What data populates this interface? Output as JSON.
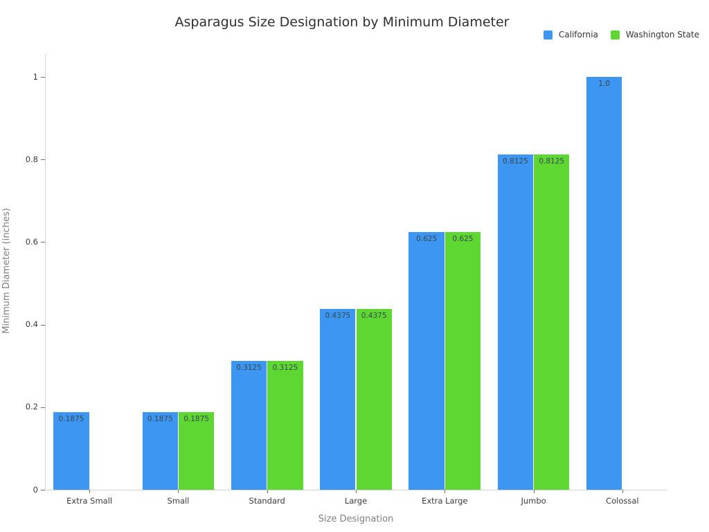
{
  "chart_data": {
    "type": "bar",
    "title": "Asparagus Size Designation by Minimum Diameter",
    "xlabel": "Size Designation",
    "ylabel": "Minimum Diameter (inches)",
    "categories": [
      "Extra Small",
      "Small",
      "Standard",
      "Large",
      "Extra Large",
      "Jumbo",
      "Colossal"
    ],
    "series": [
      {
        "name": "California",
        "color": "#3D96F2",
        "values": [
          0.1875,
          0.1875,
          0.3125,
          0.4375,
          0.625,
          0.8125,
          1.0
        ],
        "value_labels": [
          "0.1875",
          "0.1875",
          "0.3125",
          "0.4375",
          "0.625",
          "0.8125",
          "1.0"
        ]
      },
      {
        "name": "Washington State",
        "color": "#5FD732",
        "values": [
          null,
          0.1875,
          0.3125,
          0.4375,
          0.625,
          0.8125,
          null
        ],
        "value_labels": [
          null,
          "0.1875",
          "0.3125",
          "0.4375",
          "0.625",
          "0.8125",
          null
        ]
      }
    ],
    "ylim": [
      0,
      1.055
    ],
    "ytick_values": [
      0,
      0.2,
      0.4,
      0.6,
      0.8,
      1
    ],
    "ytick_labels": [
      "0",
      "0.2",
      "0.4",
      "0.6",
      "0.8",
      "1"
    ],
    "grid": false,
    "legend_position": "top-right",
    "value_label_position": "inside-top",
    "colors": {
      "background": "#ffffff",
      "title_text": "#2f2f2f",
      "tick_text": "#3b3b3b",
      "axis_title_text": "#7f7f7f",
      "axis_line": "#d4d4d4",
      "tick_mark": "#6e6e6e",
      "value_label_text": "#37474f",
      "legend_text": "#333333"
    }
  }
}
